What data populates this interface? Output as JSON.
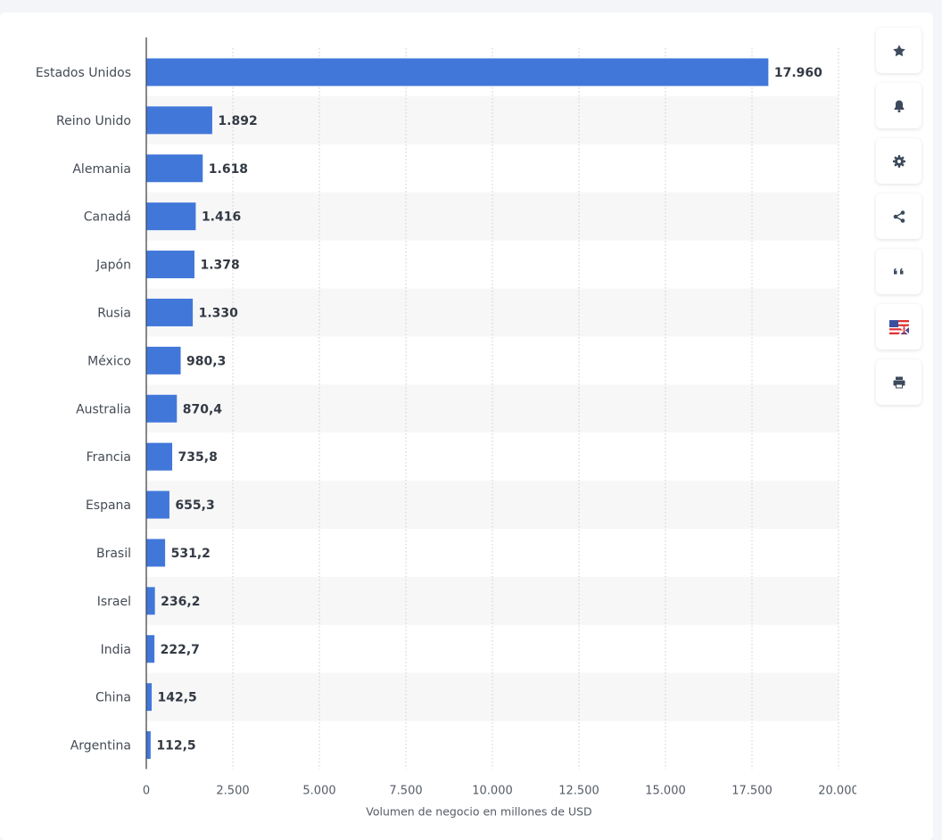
{
  "chart_data": {
    "type": "bar",
    "orientation": "horizontal",
    "categories": [
      "Estados Unidos",
      "Reino Unido",
      "Alemania",
      "Canadá",
      "Japón",
      "Rusia",
      "México",
      "Australia",
      "Francia",
      "Espana",
      "Brasil",
      "Israel",
      "India",
      "China",
      "Argentina"
    ],
    "values": [
      17960,
      1892,
      1618,
      1416,
      1378,
      1330,
      980.3,
      870.4,
      735.8,
      655.3,
      531.2,
      236.2,
      222.7,
      142.5,
      112.5
    ],
    "value_labels": [
      "17.960",
      "1.892",
      "1.618",
      "1.416",
      "1.378",
      "1.330",
      "980,3",
      "870,4",
      "735,8",
      "655,3",
      "531,2",
      "236,2",
      "222,7",
      "142,5",
      "112,5"
    ],
    "xlabel": "Volumen de negocio en millones de USD",
    "xlim": [
      0,
      20000
    ],
    "xticks": [
      0,
      2500,
      5000,
      7500,
      10000,
      12500,
      15000,
      17500,
      20000
    ],
    "xtick_labels": [
      "0",
      "2.500",
      "5.000",
      "7.500",
      "10.000",
      "12.500",
      "15.000",
      "17.500",
      "20.000"
    ],
    "grid": "vertical dotted",
    "bar_color": "#4177d9"
  },
  "toolbar": {
    "buttons": [
      {
        "name": "favorite",
        "icon": "star-icon"
      },
      {
        "name": "notification",
        "icon": "bell-icon"
      },
      {
        "name": "settings",
        "icon": "gear-icon"
      },
      {
        "name": "share",
        "icon": "share-icon"
      },
      {
        "name": "cite",
        "icon": "quote-icon"
      },
      {
        "name": "language",
        "icon": "flag-icon"
      },
      {
        "name": "print",
        "icon": "print-icon"
      }
    ]
  }
}
